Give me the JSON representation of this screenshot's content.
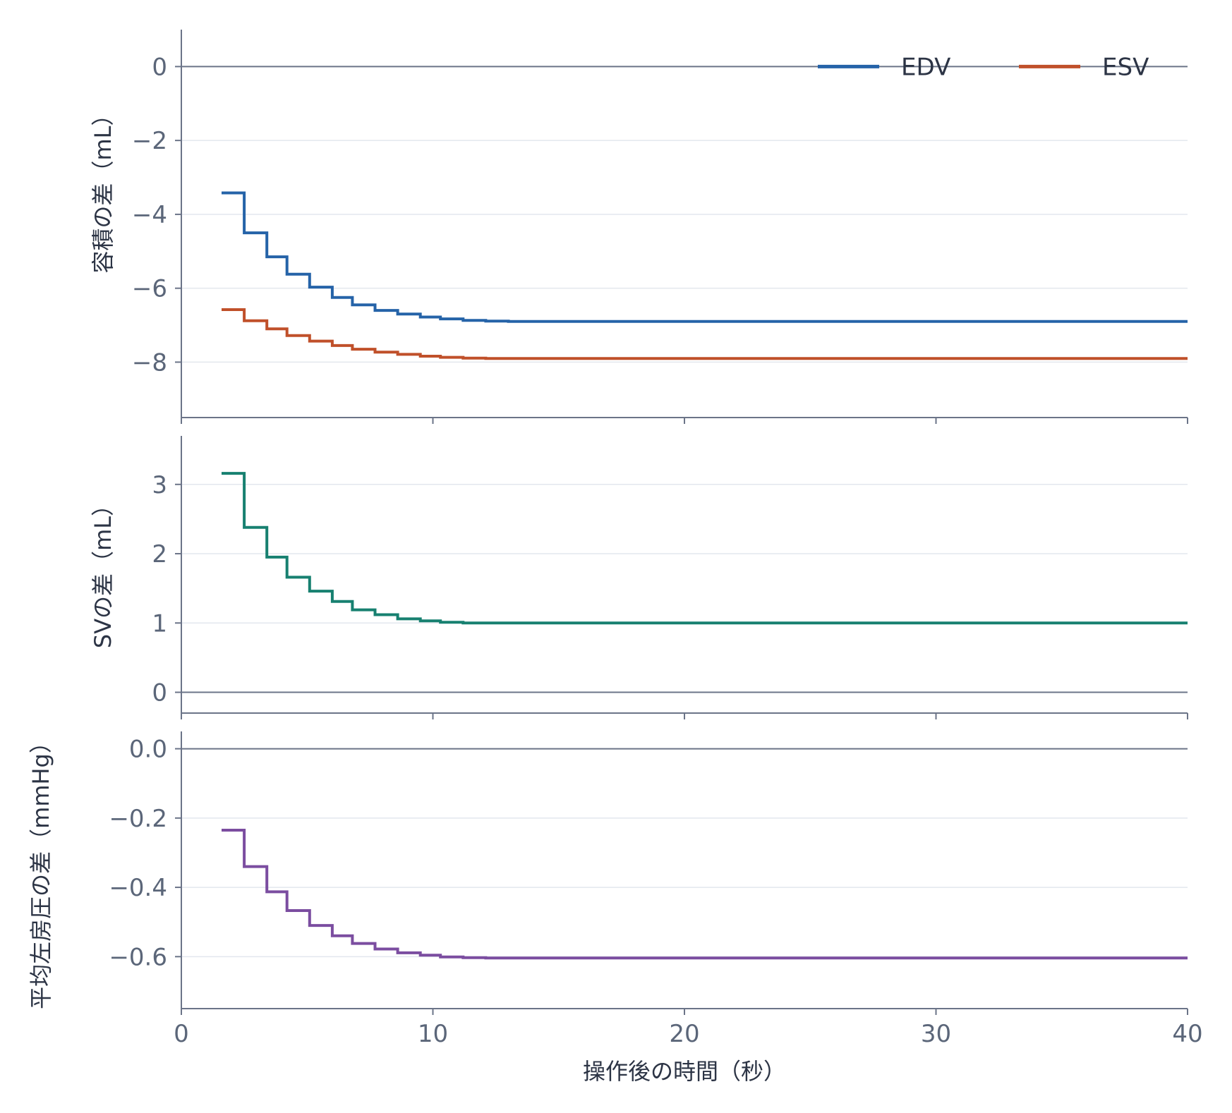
{
  "chart_data": {
    "type": "line",
    "step": "post",
    "sharex": true,
    "x_values": [
      1.6,
      2.5,
      3.4,
      4.2,
      5.1,
      6.0,
      6.8,
      7.7,
      8.6,
      9.5,
      10.3,
      11.2,
      12.1,
      13.0,
      13.8,
      14.7,
      15.6,
      16.5,
      17.4,
      18.3,
      19.1,
      20.0,
      20.9,
      21.8,
      22.7,
      23.6,
      24.4,
      25.3,
      26.2,
      27.1,
      28.0,
      28.9,
      29.7,
      30.6,
      31.5,
      32.4,
      33.3,
      34.2,
      35.0,
      35.9,
      36.8,
      37.7,
      38.6,
      39.5,
      40.0
    ],
    "xlabel": "操作後の時間（秒）",
    "xlim": [
      0,
      40
    ],
    "xticks": [
      "0",
      "10",
      "20",
      "30",
      "40"
    ],
    "grid": "horizontal",
    "panels": [
      {
        "ylabel": "容積の差（mL）",
        "ylim": [
          -9.5,
          1.0
        ],
        "yticks": [
          0,
          -2,
          -4,
          -6,
          -8
        ],
        "ytick_labels": [
          "0",
          "−2",
          "−4",
          "−6",
          "−8"
        ],
        "zero_line": true,
        "legend": "top-right",
        "series": [
          {
            "name": "EDV",
            "color": "#2563a8",
            "values": [
              -3.42,
              -4.5,
              -5.15,
              -5.62,
              -5.97,
              -6.25,
              -6.45,
              -6.6,
              -6.7,
              -6.78,
              -6.83,
              -6.87,
              -6.89,
              -6.9,
              -6.9,
              -6.9,
              -6.9,
              -6.9,
              -6.9,
              -6.9,
              -6.9,
              -6.9,
              -6.9,
              -6.9,
              -6.9,
              -6.9,
              -6.9,
              -6.9,
              -6.9,
              -6.9,
              -6.9,
              -6.9,
              -6.9,
              -6.9,
              -6.9,
              -6.9,
              -6.9,
              -6.9,
              -6.9,
              -6.9,
              -6.9,
              -6.9,
              -6.9,
              -6.9,
              -6.9
            ]
          },
          {
            "name": "ESV",
            "color": "#c0502a",
            "values": [
              -6.58,
              -6.88,
              -7.1,
              -7.28,
              -7.43,
              -7.55,
              -7.65,
              -7.73,
              -7.79,
              -7.84,
              -7.87,
              -7.89,
              -7.9,
              -7.9,
              -7.9,
              -7.9,
              -7.9,
              -7.9,
              -7.9,
              -7.9,
              -7.9,
              -7.9,
              -7.9,
              -7.9,
              -7.9,
              -7.9,
              -7.9,
              -7.9,
              -7.9,
              -7.9,
              -7.9,
              -7.9,
              -7.9,
              -7.9,
              -7.9,
              -7.9,
              -7.9,
              -7.9,
              -7.9,
              -7.9,
              -7.9,
              -7.9,
              -7.9,
              -7.9,
              -7.9
            ]
          }
        ]
      },
      {
        "ylabel": "SVの差（mL）",
        "ylim": [
          -0.3,
          3.7
        ],
        "yticks": [
          3,
          2,
          1,
          0
        ],
        "ytick_labels": [
          "3",
          "2",
          "1",
          "0"
        ],
        "zero_line": true,
        "series": [
          {
            "color": "#178070",
            "values": [
              3.16,
              2.38,
              1.95,
              1.66,
              1.46,
              1.31,
              1.19,
              1.12,
              1.06,
              1.03,
              1.01,
              1.0,
              1.0,
              1.0,
              1.0,
              1.0,
              1.0,
              1.0,
              1.0,
              1.0,
              1.0,
              1.0,
              1.0,
              1.0,
              1.0,
              1.0,
              1.0,
              1.0,
              1.0,
              1.0,
              1.0,
              1.0,
              1.0,
              1.0,
              1.0,
              1.0,
              1.0,
              1.0,
              1.0,
              1.0,
              1.0,
              1.0,
              1.0,
              1.0,
              1.0
            ]
          }
        ]
      },
      {
        "ylabel": "平均左房圧の差（mmHg）",
        "ylim": [
          -0.75,
          0.05
        ],
        "yticks": [
          0.0,
          -0.2,
          -0.4,
          -0.6
        ],
        "ytick_labels": [
          "0.0",
          "−0.2",
          "−0.4",
          "−0.6"
        ],
        "zero_line": true,
        "series": [
          {
            "color": "#7b4da0",
            "values": [
              -0.235,
              -0.34,
              -0.413,
              -0.467,
              -0.51,
              -0.54,
              -0.562,
              -0.578,
              -0.589,
              -0.596,
              -0.601,
              -0.603,
              -0.604,
              -0.604,
              -0.604,
              -0.604,
              -0.604,
              -0.604,
              -0.604,
              -0.604,
              -0.604,
              -0.604,
              -0.604,
              -0.604,
              -0.604,
              -0.604,
              -0.604,
              -0.604,
              -0.604,
              -0.604,
              -0.604,
              -0.604,
              -0.604,
              -0.604,
              -0.604,
              -0.604,
              -0.604,
              -0.604,
              -0.604,
              -0.604,
              -0.604,
              -0.604,
              -0.604,
              -0.604,
              -0.604
            ]
          }
        ]
      }
    ]
  }
}
